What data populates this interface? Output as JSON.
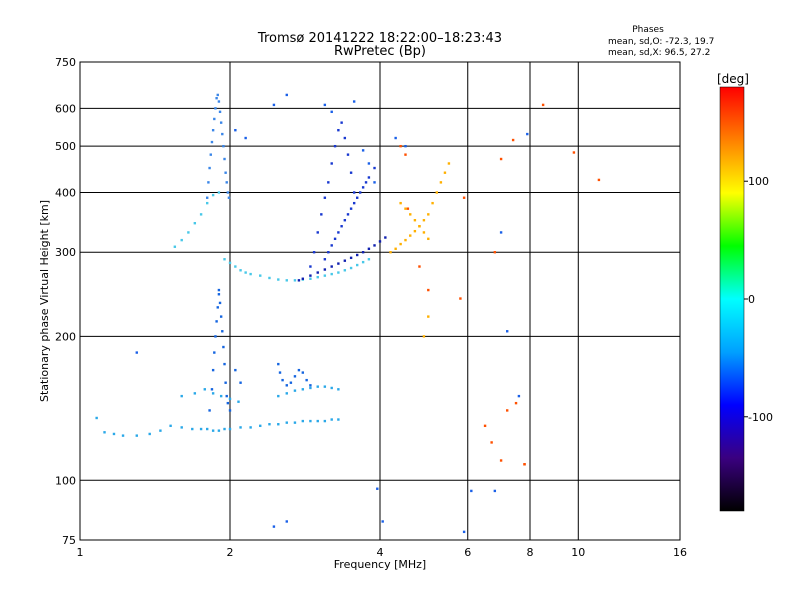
{
  "chart_data": {
    "type": "scatter",
    "title": "Tromsø 20141222  18:22:00–18:23:43",
    "subtitle": "RwPretec (Bp)",
    "xlabel": "Frequency [MHz]",
    "ylabel": "Stationary phase Virtual Height [km]",
    "x_scale": "log",
    "y_scale": "log",
    "xlim": [
      1,
      16
    ],
    "ylim": [
      75,
      750
    ],
    "x_ticks": [
      1,
      2,
      4,
      6,
      8,
      10,
      16
    ],
    "y_ticks": [
      75,
      100,
      200,
      300,
      400,
      500,
      600,
      750
    ],
    "grid": true,
    "stats": {
      "heading": "Phases",
      "line1": "mean, sd,O: -72.3, 19.7",
      "line2": "mean, sd,X:  96.5, 27.2"
    },
    "colorbar": {
      "label": "[deg]",
      "ticks": [
        100,
        0,
        -100
      ],
      "range": [
        -180,
        180
      ],
      "colors": [
        "#000000",
        "#3a0080",
        "#0000ff",
        "#00a0ff",
        "#00ffff",
        "#00ff00",
        "#ffff00",
        "#ff8000",
        "#ff0000"
      ]
    },
    "series": [
      {
        "trace": "lower-E-F1",
        "color": "#2aa8e8",
        "x": [
          1.08,
          1.12,
          1.17,
          1.22,
          1.3,
          1.38,
          1.45,
          1.52,
          1.6,
          1.68,
          1.75,
          1.8,
          1.85,
          1.9,
          1.95,
          2.0,
          2.1,
          2.2,
          2.3,
          2.4,
          2.5,
          2.6,
          2.7,
          2.8,
          2.9,
          3.0,
          3.1,
          3.2,
          3.3,
          1.6,
          1.7,
          1.78,
          1.85,
          1.92,
          2.0,
          2.08,
          2.5,
          2.6,
          2.7,
          2.8,
          2.9,
          3.0,
          3.1,
          3.2,
          3.3
        ],
        "y": [
          135,
          126,
          125,
          124,
          124,
          125,
          127,
          130,
          129,
          128,
          128,
          128,
          127,
          127,
          128,
          128,
          129,
          129,
          130,
          131,
          131,
          132,
          132,
          133,
          133,
          133,
          133,
          134,
          134,
          150,
          152,
          155,
          152,
          150,
          148,
          146,
          150,
          152,
          154,
          155,
          156,
          157,
          157,
          156,
          155
        ]
      },
      {
        "trace": "lower-cusp",
        "color": "#1565e0",
        "x": [
          1.82,
          1.84,
          1.85,
          1.86,
          1.87,
          1.88,
          1.89,
          1.9,
          1.9,
          1.91,
          1.92,
          1.93,
          1.94,
          1.95,
          1.96,
          1.97,
          1.98,
          2.0,
          2.05,
          2.1,
          2.5,
          2.52,
          2.55,
          2.6,
          2.65,
          2.7,
          2.75,
          2.8,
          2.85,
          2.9
        ],
        "y": [
          140,
          155,
          170,
          185,
          200,
          215,
          230,
          245,
          250,
          235,
          220,
          205,
          190,
          175,
          160,
          150,
          145,
          140,
          170,
          160,
          175,
          168,
          162,
          158,
          160,
          165,
          170,
          168,
          162,
          158
        ]
      },
      {
        "trace": "F-low-band",
        "color": "#48c8e8",
        "x": [
          1.55,
          1.6,
          1.65,
          1.7,
          1.75,
          1.8,
          1.85,
          1.9,
          1.95,
          2.0,
          2.05,
          2.1,
          2.15,
          2.2,
          2.3,
          2.4,
          2.5,
          2.6,
          2.7,
          2.8,
          2.9,
          3.0,
          3.1,
          3.2,
          3.3,
          3.4,
          3.5,
          3.6,
          3.7,
          3.8
        ],
        "y": [
          308,
          318,
          330,
          345,
          360,
          380,
          395,
          400,
          290,
          285,
          280,
          275,
          272,
          270,
          268,
          265,
          263,
          262,
          262,
          263,
          264,
          266,
          268,
          270,
          272,
          275,
          278,
          282,
          286,
          290
        ]
      },
      {
        "trace": "F-cusp-left",
        "color": "#3a86e8",
        "x": [
          1.8,
          1.81,
          1.82,
          1.83,
          1.84,
          1.85,
          1.86,
          1.87,
          1.88,
          1.89,
          1.9,
          1.91,
          1.92,
          1.93,
          1.94,
          1.95,
          1.96,
          1.97,
          1.98,
          1.99
        ],
        "y": [
          390,
          420,
          450,
          480,
          510,
          540,
          570,
          600,
          630,
          640,
          620,
          590,
          560,
          530,
          500,
          470,
          440,
          420,
          400,
          390
        ]
      },
      {
        "trace": "F-cusp-right",
        "color": "#1838d0",
        "x": [
          2.9,
          2.95,
          3.0,
          3.05,
          3.1,
          3.15,
          3.2,
          3.25,
          3.3,
          3.35,
          3.4,
          3.45,
          3.5,
          3.55,
          3.1,
          3.15,
          3.2,
          3.25,
          3.3,
          3.35,
          3.4,
          3.45,
          3.5,
          3.55,
          3.6,
          3.65,
          3.7,
          3.75,
          3.8,
          3.9
        ],
        "y": [
          280,
          300,
          330,
          360,
          390,
          420,
          460,
          500,
          540,
          560,
          520,
          480,
          440,
          400,
          290,
          300,
          310,
          320,
          330,
          340,
          350,
          360,
          370,
          380,
          390,
          400,
          410,
          420,
          430,
          450
        ]
      },
      {
        "trace": "F-high-band",
        "color": "#1020b0",
        "x": [
          2.75,
          2.8,
          2.9,
          3.0,
          3.1,
          3.2,
          3.3,
          3.4,
          3.5,
          3.6,
          3.7,
          3.8,
          3.9,
          4.0,
          4.1
        ],
        "y": [
          262,
          264,
          268,
          272,
          276,
          280,
          284,
          288,
          292,
          296,
          300,
          305,
          310,
          316,
          322
        ]
      },
      {
        "trace": "X-mode",
        "color": "#ffb000",
        "x": [
          4.2,
          4.3,
          4.4,
          4.5,
          4.6,
          4.7,
          4.8,
          4.9,
          5.0,
          5.1,
          5.2,
          5.3,
          5.4,
          5.5,
          4.4,
          4.5,
          4.6,
          4.7,
          4.8,
          4.9,
          5.0,
          4.9,
          5.0
        ],
        "y": [
          300,
          305,
          312,
          318,
          325,
          332,
          340,
          350,
          360,
          380,
          400,
          420,
          440,
          460,
          380,
          370,
          360,
          350,
          340,
          330,
          320,
          200,
          220
        ]
      },
      {
        "trace": "sparse",
        "color": "#ff5000",
        "x": [
          4.4,
          4.5,
          4.55,
          4.8,
          5.0,
          6.5,
          6.7,
          7.0,
          7.2,
          7.5,
          7.8,
          8.5,
          9.8,
          11.0,
          6.8,
          7.0,
          7.4,
          7.8,
          5.8,
          5.9
        ],
        "y": [
          500,
          480,
          370,
          280,
          250,
          130,
          120,
          110,
          140,
          145,
          108,
          610,
          485,
          425,
          300,
          470,
          515,
          108,
          240,
          390
        ]
      },
      {
        "trace": "sparse-cool",
        "color": "#1a60e8",
        "x": [
          2.05,
          2.15,
          2.45,
          2.6,
          3.1,
          3.2,
          3.55,
          3.7,
          3.8,
          3.9,
          4.3,
          4.5,
          5.9,
          6.1,
          6.8,
          7.0,
          7.2,
          7.6,
          7.9,
          2.45,
          2.6,
          3.95,
          4.05,
          1.3
        ],
        "y": [
          540,
          520,
          610,
          640,
          610,
          590,
          620,
          490,
          460,
          420,
          520,
          500,
          78,
          95,
          95,
          330,
          205,
          150,
          530,
          80,
          82,
          96,
          82,
          185
        ]
      }
    ]
  }
}
